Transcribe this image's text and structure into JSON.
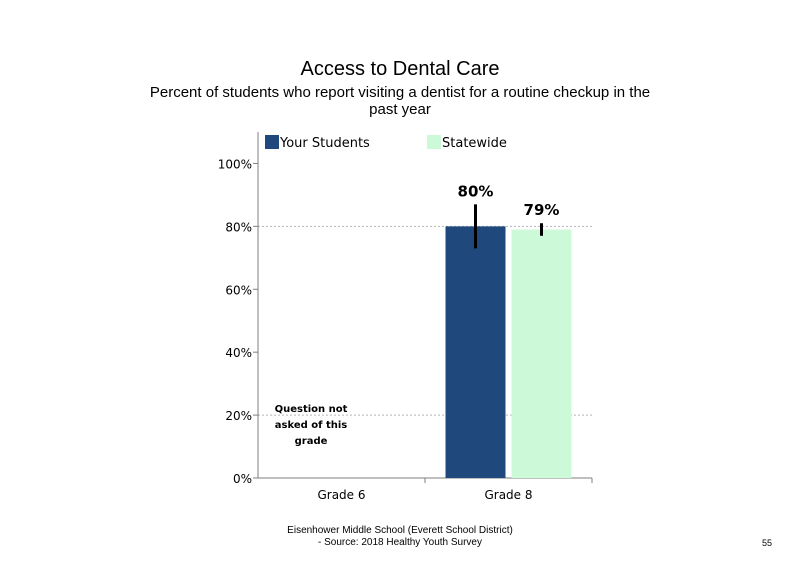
{
  "chart_data": {
    "type": "bar",
    "title": "Access to Dental Care",
    "subtitle": "Percent of students who report visiting a dentist for a routine checkup in the past year",
    "categories": [
      "Grade 6",
      "Grade 8"
    ],
    "series": [
      {
        "name": "Your Students",
        "color": "#1f497d",
        "values": [
          null,
          80
        ],
        "error_low": [
          null,
          73
        ],
        "error_high": [
          null,
          87
        ]
      },
      {
        "name": "Statewide",
        "color": "#ccf9d8",
        "values": [
          null,
          79
        ],
        "error_low": [
          null,
          77
        ],
        "error_high": [
          null,
          81
        ]
      }
    ],
    "data_labels": [
      {
        "series": 0,
        "category": 1,
        "text": "80%"
      },
      {
        "series": 1,
        "category": 1,
        "text": "79%"
      }
    ],
    "yticks": [
      "0%",
      "20%",
      "40%",
      "60%",
      "80%",
      "100%"
    ],
    "ylim": [
      0,
      110
    ],
    "gridlines": [
      20,
      80
    ],
    "legend": "top",
    "annotation": "Question not asked of this grade"
  },
  "footer": {
    "line1": "Eisenhower Middle School (Everett School District)",
    "line2": "- Source: 2018 Healthy Youth Survey"
  },
  "page_number": "55"
}
